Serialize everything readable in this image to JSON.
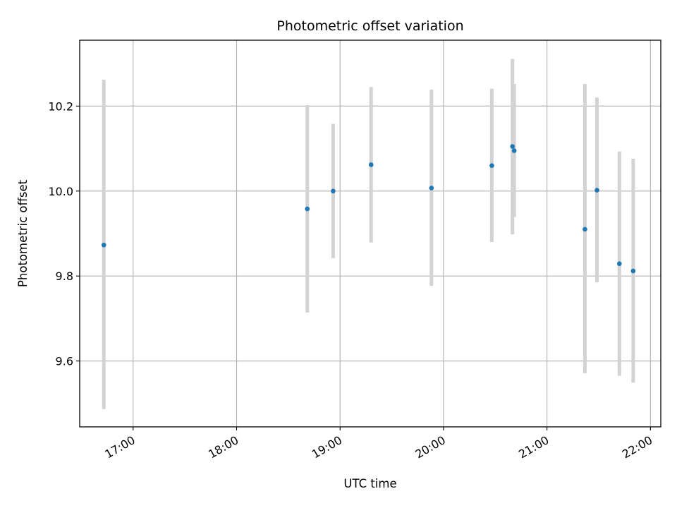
{
  "chart_data": {
    "type": "scatter",
    "title": "Photometric offset variation",
    "xlabel": "UTC time",
    "ylabel": "Photometric offset",
    "x_unit": "UTC time (HH:MM)",
    "xlim": [
      "16:29",
      "22:06"
    ],
    "ylim": [
      9.445,
      10.355
    ],
    "x_ticks": [
      "17:00",
      "18:00",
      "19:00",
      "20:00",
      "21:00",
      "22:00"
    ],
    "y_ticks": [
      9.6,
      9.8,
      10.0,
      10.2
    ],
    "y_tick_labels": [
      "9.6",
      "9.8",
      "10.0",
      "10.2"
    ],
    "grid": true,
    "x_tick_rotation": 30,
    "marker_color": "#1f77b4",
    "errorbar_color": "#d3d3d3",
    "series": [
      {
        "points": [
          {
            "x": "16:43",
            "y": 9.873,
            "low": 9.487,
            "high": 10.262
          },
          {
            "x": "18:41",
            "y": 9.958,
            "low": 9.714,
            "high": 10.202
          },
          {
            "x": "18:56",
            "y": 10.0,
            "low": 9.842,
            "high": 10.158
          },
          {
            "x": "19:18",
            "y": 10.062,
            "low": 9.879,
            "high": 10.245
          },
          {
            "x": "19:53",
            "y": 10.007,
            "low": 9.777,
            "high": 10.239
          },
          {
            "x": "20:28",
            "y": 10.06,
            "low": 9.88,
            "high": 10.241
          },
          {
            "x": "20:40",
            "y": 10.105,
            "low": 9.898,
            "high": 10.311
          },
          {
            "x": "20:41",
            "y": 10.095,
            "low": 9.939,
            "high": 10.252
          },
          {
            "x": "21:22",
            "y": 9.91,
            "low": 9.571,
            "high": 10.252
          },
          {
            "x": "21:29",
            "y": 10.002,
            "low": 9.785,
            "high": 10.22
          },
          {
            "x": "21:42",
            "y": 9.829,
            "low": 9.565,
            "high": 10.093
          },
          {
            "x": "21:50",
            "y": 9.812,
            "low": 9.549,
            "high": 10.076
          }
        ]
      }
    ]
  }
}
